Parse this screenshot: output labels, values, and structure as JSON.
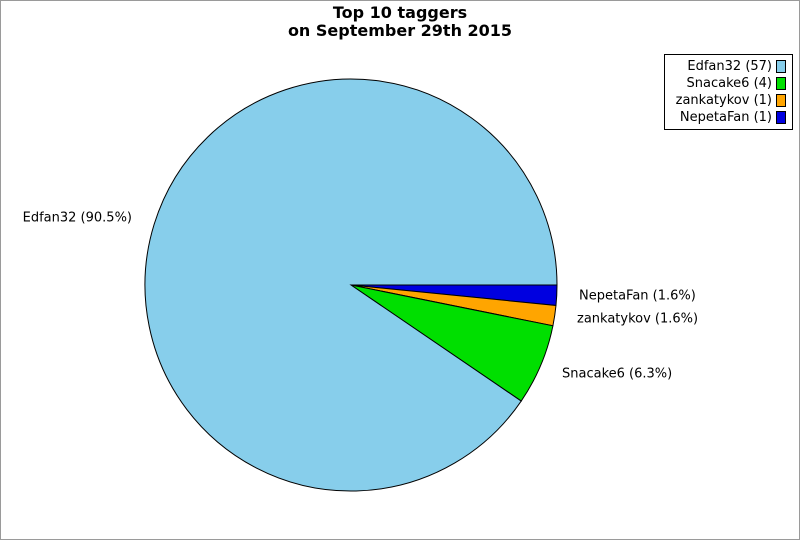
{
  "title": {
    "line1": "Top 10 taggers",
    "line2": "on September 29th 2015"
  },
  "chart_data": {
    "type": "pie",
    "title": "Top 10 taggers on September 29th 2015",
    "total_count": 63,
    "start_angle_deg": 0,
    "direction": "counterclockwise",
    "outline_color": "#000000",
    "legend_position": "top-right",
    "slices": [
      {
        "name": "Edfan32",
        "count": 57,
        "percent": 90.5,
        "label": "Edfan32 (90.5%)",
        "legend_label": "Edfan32 (57)",
        "color": "#87CEEB"
      },
      {
        "name": "Snacake6",
        "count": 4,
        "percent": 6.3,
        "label": "Snacake6 (6.3%)",
        "legend_label": "Snacake6 (4)",
        "color": "#00DF00"
      },
      {
        "name": "zankatykov",
        "count": 1,
        "percent": 1.6,
        "label": "zankatykov (1.6%)",
        "legend_label": "zankatykov (1)",
        "color": "#FFA500"
      },
      {
        "name": "NepetaFan",
        "count": 1,
        "percent": 1.6,
        "label": "NepetaFan (1.6%)",
        "legend_label": "NepetaFan (1)",
        "color": "#0000E0"
      }
    ]
  }
}
